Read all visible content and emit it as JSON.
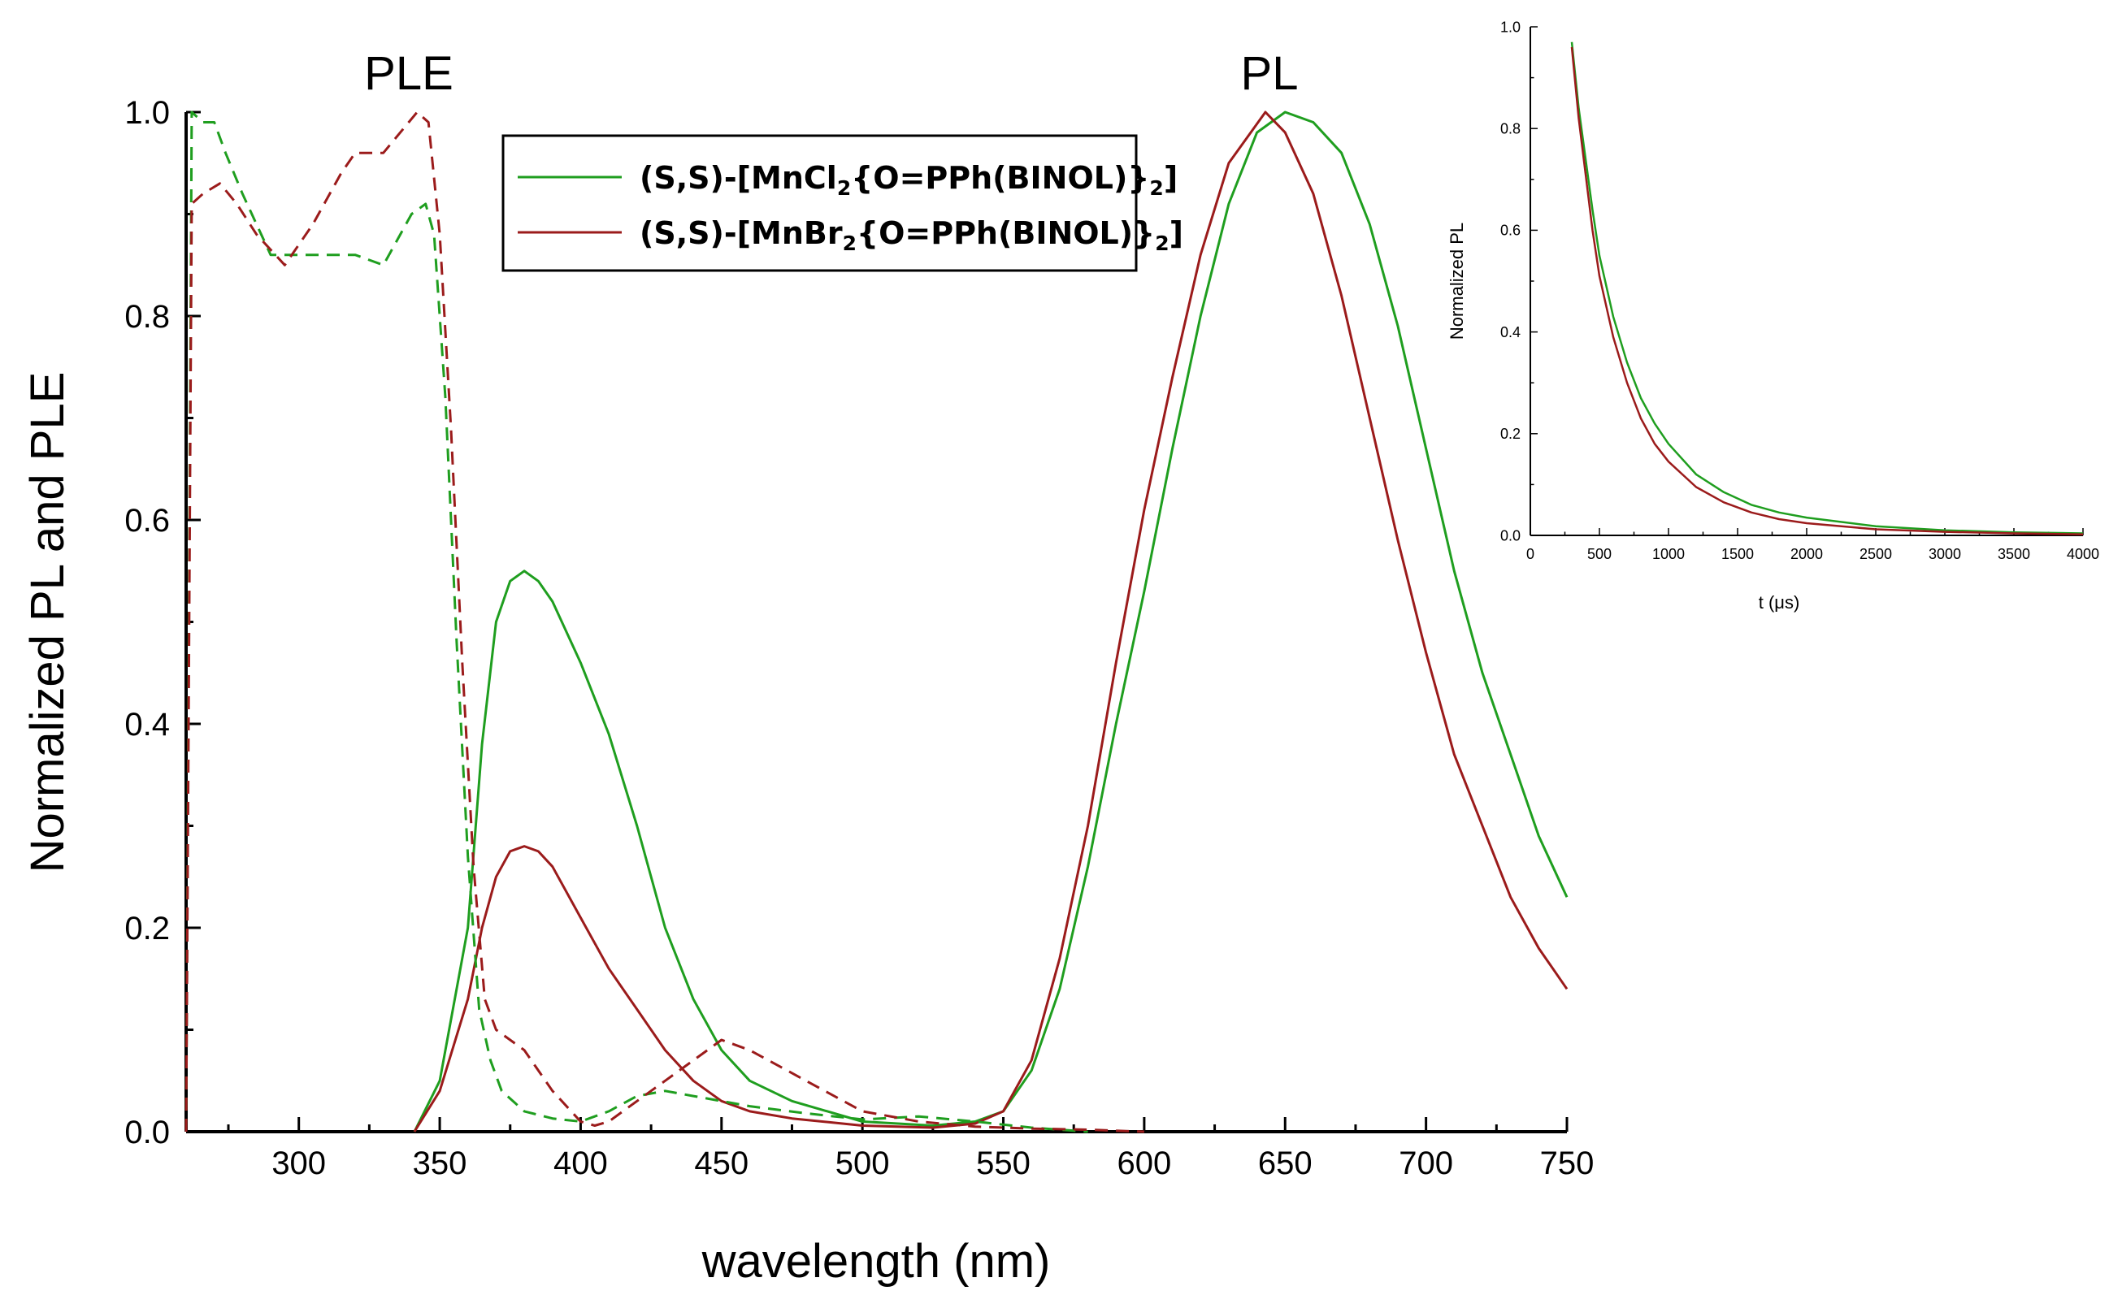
{
  "colors": {
    "green": "#1f9e1f",
    "red": "#9b1b1b",
    "axis": "#000000"
  },
  "chart_data": [
    {
      "type": "line",
      "title": "",
      "xlabel": "wavelength (nm)",
      "ylabel": "Normalized PL and PLE",
      "xlim": [
        260,
        750
      ],
      "ylim": [
        0,
        1.0
      ],
      "xticks": [
        300,
        350,
        400,
        450,
        500,
        550,
        600,
        650,
        700,
        750
      ],
      "xtick_labels": [
        "300",
        "350",
        "400",
        "450",
        "500",
        "550",
        "600",
        "650",
        "700",
        "750"
      ],
      "yticks": [
        0.0,
        0.2,
        0.4,
        0.6,
        0.8,
        1.0
      ],
      "ytick_labels": [
        "0.0",
        "0.2",
        "0.4",
        "0.6",
        "0.8",
        "1.0"
      ],
      "annotations": [
        {
          "text": "PLE",
          "x": 340,
          "y": 1.03
        },
        {
          "text": "PL",
          "x": 640,
          "y": 1.03
        }
      ],
      "legend": {
        "placement": "top-center",
        "entries": [
          {
            "prefix": "(S,S)-[MnCl",
            "sub": "2",
            "middle": "{O=PPh(BINOL)}",
            "sub2": "2",
            "suffix": "]",
            "color_key": "green"
          },
          {
            "prefix": "(S,S)-[MnBr",
            "sub": "2",
            "middle": "{O=PPh(BINOL)}",
            "sub2": "2",
            "suffix": "]",
            "color_key": "red"
          }
        ]
      },
      "series": [
        {
          "name": "MnCl2 PL",
          "color_key": "green",
          "style": "solid",
          "x": [
            341,
            350,
            360,
            365,
            370,
            375,
            380,
            385,
            390,
            400,
            410,
            420,
            430,
            440,
            450,
            460,
            475,
            500,
            525,
            540,
            550,
            560,
            570,
            580,
            590,
            600,
            610,
            620,
            630,
            640,
            650,
            660,
            670,
            680,
            690,
            700,
            710,
            720,
            730,
            740,
            750
          ],
          "y": [
            0.0,
            0.05,
            0.2,
            0.38,
            0.5,
            0.54,
            0.55,
            0.54,
            0.52,
            0.46,
            0.39,
            0.3,
            0.2,
            0.13,
            0.08,
            0.05,
            0.03,
            0.01,
            0.006,
            0.01,
            0.02,
            0.06,
            0.14,
            0.26,
            0.4,
            0.53,
            0.67,
            0.8,
            0.91,
            0.98,
            1.0,
            0.99,
            0.96,
            0.89,
            0.79,
            0.67,
            0.55,
            0.45,
            0.37,
            0.29,
            0.23
          ]
        },
        {
          "name": "MnBr2 PL",
          "color_key": "red",
          "style": "solid",
          "x": [
            341,
            350,
            360,
            365,
            370,
            375,
            380,
            385,
            390,
            400,
            410,
            420,
            430,
            440,
            450,
            460,
            475,
            500,
            525,
            540,
            550,
            560,
            570,
            580,
            590,
            600,
            610,
            620,
            630,
            643,
            650,
            660,
            670,
            680,
            690,
            700,
            710,
            720,
            730,
            740,
            750
          ],
          "y": [
            0.0,
            0.04,
            0.13,
            0.2,
            0.25,
            0.275,
            0.28,
            0.275,
            0.26,
            0.21,
            0.16,
            0.12,
            0.08,
            0.05,
            0.03,
            0.02,
            0.013,
            0.006,
            0.004,
            0.008,
            0.02,
            0.07,
            0.17,
            0.3,
            0.46,
            0.61,
            0.74,
            0.86,
            0.95,
            1.0,
            0.98,
            0.92,
            0.82,
            0.7,
            0.58,
            0.47,
            0.37,
            0.3,
            0.23,
            0.18,
            0.14
          ]
        },
        {
          "name": "MnCl2 PLE",
          "color_key": "green",
          "style": "dashed",
          "x": [
            260,
            262,
            266,
            270,
            274,
            280,
            290,
            300,
            310,
            320,
            330,
            340,
            345,
            348,
            352,
            356,
            360,
            364,
            368,
            372,
            380,
            390,
            400,
            410,
            420,
            430,
            440,
            450,
            460,
            480,
            500,
            520,
            540,
            560,
            580
          ],
          "y": [
            0.0,
            1.0,
            0.99,
            0.99,
            0.96,
            0.92,
            0.86,
            0.86,
            0.86,
            0.86,
            0.85,
            0.9,
            0.91,
            0.88,
            0.72,
            0.48,
            0.27,
            0.12,
            0.07,
            0.04,
            0.02,
            0.013,
            0.01,
            0.02,
            0.035,
            0.04,
            0.035,
            0.03,
            0.025,
            0.018,
            0.012,
            0.015,
            0.01,
            0.004,
            0.0
          ]
        },
        {
          "name": "MnBr2 PLE",
          "color_key": "red",
          "style": "dashed",
          "x": [
            260,
            262,
            266,
            272,
            278,
            285,
            295,
            305,
            315,
            320,
            330,
            336,
            342,
            346,
            350,
            354,
            358,
            362,
            366,
            370,
            380,
            390,
            400,
            405,
            410,
            420,
            430,
            440,
            450,
            460,
            480,
            500,
            520,
            540,
            560,
            580,
            600
          ],
          "y": [
            0.0,
            0.91,
            0.92,
            0.93,
            0.91,
            0.88,
            0.85,
            0.89,
            0.94,
            0.96,
            0.96,
            0.98,
            1.0,
            0.99,
            0.88,
            0.69,
            0.46,
            0.26,
            0.13,
            0.1,
            0.08,
            0.04,
            0.01,
            0.006,
            0.01,
            0.03,
            0.05,
            0.07,
            0.09,
            0.08,
            0.05,
            0.02,
            0.01,
            0.005,
            0.003,
            0.002,
            0.0
          ]
        }
      ]
    },
    {
      "type": "line",
      "title": "",
      "xlabel": "t (μs)",
      "ylabel": "Normalized PL",
      "xlim": [
        0,
        4000
      ],
      "ylim": [
        0,
        1.0
      ],
      "xticks": [
        0,
        500,
        1000,
        1500,
        2000,
        2500,
        3000,
        3500,
        4000
      ],
      "xtick_labels": [
        "0",
        "500",
        "1000",
        "1500",
        "2000",
        "2500",
        "3000",
        "3500",
        "4000"
      ],
      "yticks": [
        0.0,
        0.2,
        0.4,
        0.6,
        0.8,
        1.0
      ],
      "ytick_labels": [
        "0.0",
        "0.2",
        "0.4",
        "0.6",
        "0.8",
        "1.0"
      ],
      "series": [
        {
          "name": "MnCl2 decay",
          "color_key": "green",
          "style": "solid",
          "x": [
            300,
            350,
            400,
            450,
            500,
            600,
            700,
            800,
            900,
            1000,
            1200,
            1400,
            1600,
            1800,
            2000,
            2500,
            3000,
            3500,
            4000
          ],
          "y": [
            0.97,
            0.84,
            0.74,
            0.64,
            0.55,
            0.43,
            0.34,
            0.27,
            0.22,
            0.18,
            0.12,
            0.085,
            0.06,
            0.045,
            0.035,
            0.018,
            0.01,
            0.006,
            0.004
          ]
        },
        {
          "name": "MnBr2 decay",
          "color_key": "red",
          "style": "solid",
          "x": [
            300,
            350,
            400,
            450,
            500,
            600,
            700,
            800,
            900,
            1000,
            1200,
            1400,
            1600,
            1800,
            2000,
            2500,
            3000,
            3500,
            4000
          ],
          "y": [
            0.96,
            0.82,
            0.71,
            0.6,
            0.51,
            0.39,
            0.3,
            0.23,
            0.18,
            0.145,
            0.095,
            0.065,
            0.045,
            0.032,
            0.024,
            0.012,
            0.007,
            0.004,
            0.002
          ]
        }
      ]
    }
  ]
}
